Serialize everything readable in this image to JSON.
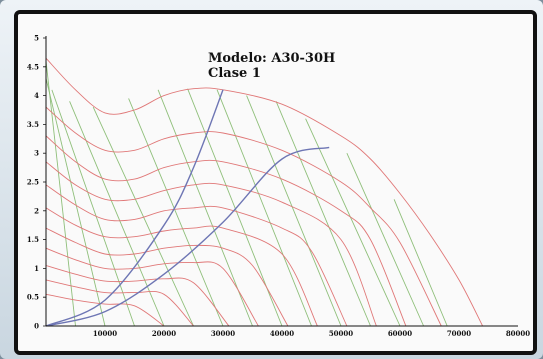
{
  "chart_data": {
    "type": "line",
    "title": "Modelo: A30-30H",
    "subtitle": "Clase 1",
    "xlabel": "",
    "ylabel": "",
    "xlim": [
      0,
      80000
    ],
    "ylim": [
      0,
      5
    ],
    "x_ticks": [
      10000,
      20000,
      30000,
      40000,
      50000,
      60000,
      70000,
      80000
    ],
    "x_tick_labels": [
      "10000",
      "20000",
      "30000",
      "40000",
      "50000",
      "60000",
      "70000",
      "80000"
    ],
    "y_ticks": [
      0,
      0.5,
      1,
      1.5,
      2,
      2.5,
      3,
      3.5,
      4,
      4.5,
      5
    ],
    "y_tick_labels": [
      "0",
      "0.5",
      "1",
      "1.5",
      "2",
      "2.5",
      "3",
      "3.5",
      "4",
      "4.5",
      "5"
    ],
    "grid": false,
    "colors": {
      "speed_curves": "#e07878",
      "efficiency_lines": "#8fbf7a",
      "system_curves": "#6e76b4",
      "axes": "#111111"
    },
    "series": [
      {
        "group": "speed",
        "x": [
          0,
          5000,
          10000,
          15000,
          20000,
          25000,
          30000,
          40000,
          50000,
          55000,
          60000,
          65000,
          70000,
          74000
        ],
        "y": [
          4.65,
          4.1,
          3.7,
          3.75,
          4.0,
          4.12,
          4.1,
          3.85,
          3.3,
          2.9,
          2.3,
          1.6,
          0.8,
          0
        ]
      },
      {
        "group": "speed",
        "x": [
          0,
          5000,
          10000,
          15000,
          20000,
          25000,
          30000,
          40000,
          50000,
          55000,
          60000,
          67000
        ],
        "y": [
          3.8,
          3.35,
          3.05,
          3.05,
          3.25,
          3.35,
          3.35,
          3.05,
          2.5,
          2.05,
          1.45,
          0
        ]
      },
      {
        "group": "speed",
        "x": [
          0,
          5000,
          10000,
          15000,
          20000,
          25000,
          30000,
          40000,
          50000,
          55000,
          61000
        ],
        "y": [
          3.3,
          2.85,
          2.55,
          2.55,
          2.75,
          2.85,
          2.85,
          2.55,
          2.0,
          1.5,
          0
        ]
      },
      {
        "group": "speed",
        "x": [
          0,
          5000,
          10000,
          15000,
          20000,
          25000,
          30000,
          40000,
          50000,
          56000
        ],
        "y": [
          2.85,
          2.45,
          2.2,
          2.2,
          2.35,
          2.45,
          2.45,
          2.15,
          1.5,
          0
        ]
      },
      {
        "group": "speed",
        "x": [
          0,
          5000,
          10000,
          15000,
          20000,
          25000,
          30000,
          40000,
          45000,
          51000
        ],
        "y": [
          2.45,
          2.1,
          1.85,
          1.85,
          2.0,
          2.05,
          2.05,
          1.7,
          1.3,
          0
        ]
      },
      {
        "group": "speed",
        "x": [
          0,
          5000,
          10000,
          15000,
          20000,
          25000,
          30000,
          40000,
          46000
        ],
        "y": [
          2.05,
          1.75,
          1.55,
          1.55,
          1.65,
          1.7,
          1.7,
          1.25,
          0
        ]
      },
      {
        "group": "speed",
        "x": [
          0,
          5000,
          10000,
          15000,
          20000,
          25000,
          30000,
          35000,
          41000
        ],
        "y": [
          1.7,
          1.45,
          1.25,
          1.25,
          1.35,
          1.4,
          1.35,
          1.05,
          0
        ]
      },
      {
        "group": "speed",
        "x": [
          0,
          5000,
          10000,
          15000,
          20000,
          25000,
          30000,
          36000
        ],
        "y": [
          1.35,
          1.15,
          1.0,
          1.0,
          1.08,
          1.1,
          1.0,
          0
        ]
      },
      {
        "group": "speed",
        "x": [
          0,
          5000,
          10000,
          15000,
          20000,
          25000,
          31000
        ],
        "y": [
          1.05,
          0.9,
          0.78,
          0.78,
          0.82,
          0.75,
          0
        ]
      },
      {
        "group": "speed",
        "x": [
          0,
          5000,
          10000,
          15000,
          20000,
          25000
        ],
        "y": [
          0.8,
          0.68,
          0.58,
          0.58,
          0.55,
          0
        ]
      },
      {
        "group": "speed",
        "x": [
          0,
          5000,
          10000,
          15000,
          20000
        ],
        "y": [
          0.55,
          0.45,
          0.38,
          0.35,
          0
        ]
      },
      {
        "group": "efficiency",
        "x": [
          0,
          5000
        ],
        "y": [
          4.6,
          0
        ]
      },
      {
        "group": "efficiency",
        "x": [
          0,
          10000
        ],
        "y": [
          4.3,
          0
        ]
      },
      {
        "group": "efficiency",
        "x": [
          1000,
          15000
        ],
        "y": [
          4.1,
          0
        ]
      },
      {
        "group": "efficiency",
        "x": [
          4000,
          20000
        ],
        "y": [
          3.9,
          0
        ]
      },
      {
        "group": "efficiency",
        "x": [
          8000,
          25000
        ],
        "y": [
          3.8,
          0
        ]
      },
      {
        "group": "efficiency",
        "x": [
          14000,
          30000
        ],
        "y": [
          3.95,
          0
        ]
      },
      {
        "group": "efficiency",
        "x": [
          19000,
          35000
        ],
        "y": [
          4.1,
          0
        ]
      },
      {
        "group": "efficiency",
        "x": [
          24000,
          40000
        ],
        "y": [
          4.12,
          0
        ]
      },
      {
        "group": "efficiency",
        "x": [
          29000,
          45000
        ],
        "y": [
          4.1,
          0
        ]
      },
      {
        "group": "efficiency",
        "x": [
          34000,
          50000
        ],
        "y": [
          4.0,
          0
        ]
      },
      {
        "group": "efficiency",
        "x": [
          39000,
          55000
        ],
        "y": [
          3.9,
          0
        ]
      },
      {
        "group": "efficiency",
        "x": [
          44000,
          60000
        ],
        "y": [
          3.6,
          0
        ]
      },
      {
        "group": "efficiency",
        "x": [
          51000,
          64000
        ],
        "y": [
          3.0,
          0
        ]
      },
      {
        "group": "efficiency",
        "x": [
          59000,
          68000
        ],
        "y": [
          2.2,
          0
        ]
      },
      {
        "group": "system",
        "x": [
          0,
          10000,
          20000,
          25000,
          30000
        ],
        "y": [
          0,
          0.45,
          1.75,
          2.75,
          4.1
        ]
      },
      {
        "group": "system",
        "x": [
          0,
          10000,
          20000,
          30000,
          40000,
          48000
        ],
        "y": [
          0,
          0.25,
          0.9,
          1.8,
          2.9,
          3.1
        ]
      }
    ]
  }
}
